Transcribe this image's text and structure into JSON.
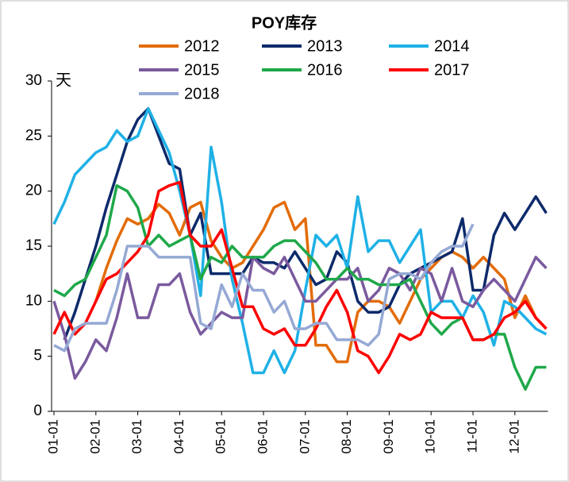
{
  "chart_data": {
    "type": "line",
    "title": "POY库存",
    "unit": "天",
    "categories": [
      "01-01",
      null,
      null,
      null,
      "02-01",
      null,
      null,
      null,
      "03-01",
      null,
      null,
      null,
      "04-01",
      null,
      null,
      null,
      "05-01",
      null,
      null,
      null,
      "06-01",
      null,
      null,
      null,
      "07-01",
      null,
      null,
      null,
      "08-01",
      null,
      null,
      null,
      "09-01",
      null,
      null,
      null,
      "10-01",
      null,
      null,
      null,
      "11-01",
      null,
      null,
      null,
      "12-01",
      null,
      null,
      null
    ],
    "ylim": [
      0,
      30
    ],
    "yticks": [
      0,
      5,
      10,
      15,
      20,
      25,
      30
    ],
    "grid": false,
    "series": [
      {
        "name": "2012",
        "color": "#e36c09",
        "values": [
          null,
          null,
          null,
          null,
          10,
          13,
          15.5,
          17.5,
          17,
          17.5,
          18.8,
          18,
          16,
          18.5,
          19,
          15.5,
          14,
          13,
          13.5,
          15,
          16.5,
          18.5,
          19,
          16.5,
          17.5,
          6,
          6,
          4.5,
          4.5,
          9,
          10,
          10,
          9.5,
          8,
          10,
          12,
          13,
          14,
          14.5,
          14,
          13,
          14,
          13,
          12,
          8.5,
          10.5,
          8.5,
          7.5
        ]
      },
      {
        "name": "2013",
        "color": "#0d2a6b",
        "values": [
          null,
          6.5,
          9,
          12,
          15,
          18.5,
          21.5,
          24.5,
          26.5,
          27.5,
          25,
          22.5,
          22,
          16,
          18,
          12.5,
          12.5,
          12.5,
          12.5,
          14,
          13.5,
          13.5,
          13,
          14.5,
          13,
          11.5,
          12,
          14.5,
          13.5,
          10,
          9,
          9,
          9.5,
          11.5,
          12.5,
          13,
          13.5,
          14,
          14.5,
          17.5,
          11,
          11,
          16,
          18,
          16.5,
          18,
          19.5,
          18
        ]
      },
      {
        "name": "2014",
        "color": "#1fb1e6",
        "values": [
          17,
          19,
          21.5,
          22.5,
          23.5,
          24,
          25.5,
          24.5,
          25,
          27.5,
          25.5,
          23.5,
          20,
          16,
          10.5,
          24,
          19,
          12,
          8,
          3.5,
          3.5,
          5.5,
          3.5,
          5.5,
          11,
          16,
          15,
          16,
          13,
          19.5,
          14.5,
          15.5,
          15.5,
          13.5,
          15,
          16.5,
          9,
          10,
          10,
          8.5,
          10.5,
          9,
          6,
          10,
          9.5,
          8.5,
          7.5,
          7
        ]
      },
      {
        "name": "2015",
        "color": "#7a5a9e",
        "values": [
          10,
          7,
          3,
          4.5,
          6.5,
          5.5,
          8.5,
          12.5,
          8.5,
          8.5,
          11.5,
          11.5,
          12.5,
          9,
          7,
          8,
          9,
          8.5,
          8.5,
          14,
          13,
          12.5,
          14,
          12,
          10,
          10,
          11,
          12,
          12,
          13,
          10,
          11,
          13,
          12.5,
          11,
          13,
          12.5,
          10,
          13,
          10,
          9.5,
          11,
          12,
          11,
          10,
          12,
          14,
          13
        ]
      },
      {
        "name": "2016",
        "color": "#1fa84a",
        "values": [
          11,
          10.5,
          11.5,
          12,
          14,
          16,
          20.5,
          20,
          18.5,
          15,
          16,
          15,
          15.5,
          16,
          12,
          14,
          13.5,
          15,
          14,
          14,
          14,
          15,
          15.5,
          15.5,
          14.5,
          13.5,
          12,
          12,
          13,
          12,
          12,
          11.5,
          11.5,
          11.5,
          12,
          10,
          8,
          7,
          8,
          8.5,
          6.5,
          6.5,
          7,
          7,
          4,
          2,
          4,
          4
        ]
      },
      {
        "name": "2017",
        "color": "#ff0000",
        "values": [
          7,
          9,
          7,
          8,
          10,
          12,
          12.5,
          13.5,
          14.5,
          16,
          20,
          20.5,
          20.8,
          16,
          15,
          15,
          16.5,
          13,
          9.5,
          9.5,
          7.5,
          7,
          7.5,
          6,
          6,
          7.5,
          9.5,
          11,
          9,
          5.5,
          5,
          3.5,
          5,
          7,
          6.5,
          7,
          9,
          8.5,
          8.5,
          8.5,
          6.5,
          6.5,
          7,
          8.5,
          9,
          10,
          8.5,
          7.5
        ]
      },
      {
        "name": "2018",
        "color": "#95a9d4",
        "values": [
          6,
          5.5,
          7.5,
          8,
          8,
          8,
          11,
          15,
          15,
          15,
          14,
          14,
          14,
          14,
          8,
          7.5,
          11.5,
          9.5,
          12.5,
          11,
          11,
          9,
          10,
          7.5,
          7.5,
          8,
          8,
          6.5,
          6.5,
          6.5,
          6,
          7,
          12,
          12.5,
          12.5,
          12,
          13.5,
          14.5,
          15,
          15,
          17,
          null,
          null,
          null,
          null,
          null,
          null,
          null
        ]
      }
    ]
  }
}
